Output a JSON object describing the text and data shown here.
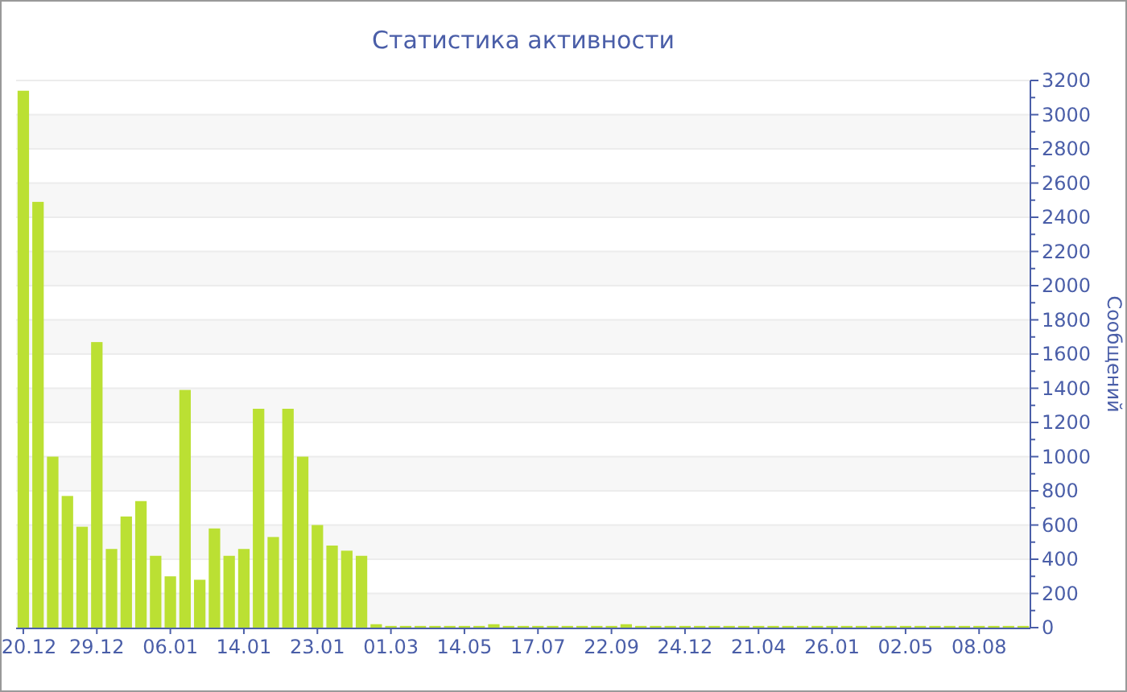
{
  "chart_data": {
    "type": "bar",
    "title": "Статистика активности",
    "ylabel": "Сообщений",
    "categories": [
      "20.12",
      null,
      null,
      null,
      null,
      "29.12",
      null,
      null,
      null,
      null,
      "06.01",
      null,
      null,
      null,
      null,
      "14.01",
      null,
      null,
      null,
      null,
      "23.01",
      null,
      null,
      null,
      null,
      "01.03",
      null,
      null,
      null,
      null,
      "14.05",
      null,
      null,
      null,
      null,
      "17.07",
      null,
      null,
      null,
      null,
      "22.09",
      null,
      null,
      null,
      null,
      "24.12",
      null,
      null,
      null,
      null,
      "21.04",
      null,
      null,
      null,
      null,
      "26.01",
      null,
      null,
      null,
      null,
      "02.05",
      null,
      null,
      null,
      null,
      "08.08",
      null,
      null,
      null
    ],
    "values": [
      3140,
      2490,
      1000,
      770,
      590,
      1670,
      460,
      650,
      740,
      420,
      300,
      1390,
      280,
      580,
      420,
      460,
      1280,
      530,
      1280,
      1000,
      600,
      480,
      450,
      420,
      20,
      10,
      10,
      10,
      10,
      10,
      10,
      10,
      20,
      10,
      10,
      10,
      10,
      10,
      10,
      10,
      10,
      20,
      10,
      10,
      10,
      10,
      10,
      10,
      10,
      10,
      10,
      10,
      10,
      10,
      10,
      10,
      10,
      10,
      10,
      10,
      10,
      10,
      10,
      10,
      10,
      10,
      10,
      10,
      10
    ],
    "color": "#bbe033",
    "ylim": [
      0,
      3200
    ],
    "yticks": [
      0,
      {
        "value": 100,
        "label": null
      },
      200,
      {
        "value": 300,
        "label": null
      },
      400,
      {
        "value": 500,
        "label": null
      },
      600,
      {
        "value": 700,
        "label": null
      },
      800,
      {
        "value": 900,
        "label": null
      },
      1000,
      {
        "value": 1100,
        "label": null
      },
      1200,
      {
        "value": 1300,
        "label": null
      },
      1400,
      {
        "value": 1500,
        "label": null
      },
      1600,
      {
        "value": 1700,
        "label": null
      },
      1800,
      {
        "value": 1900,
        "label": null
      },
      2000,
      {
        "value": 2100,
        "label": null
      },
      2200,
      {
        "value": 2300,
        "label": null
      },
      2400,
      {
        "value": 2500,
        "label": null
      },
      2600,
      {
        "value": 2700,
        "label": null
      },
      2800,
      {
        "value": 2900,
        "label": null
      },
      3000,
      {
        "value": 3100,
        "label": null
      },
      3200
    ],
    "grid": "y"
  }
}
